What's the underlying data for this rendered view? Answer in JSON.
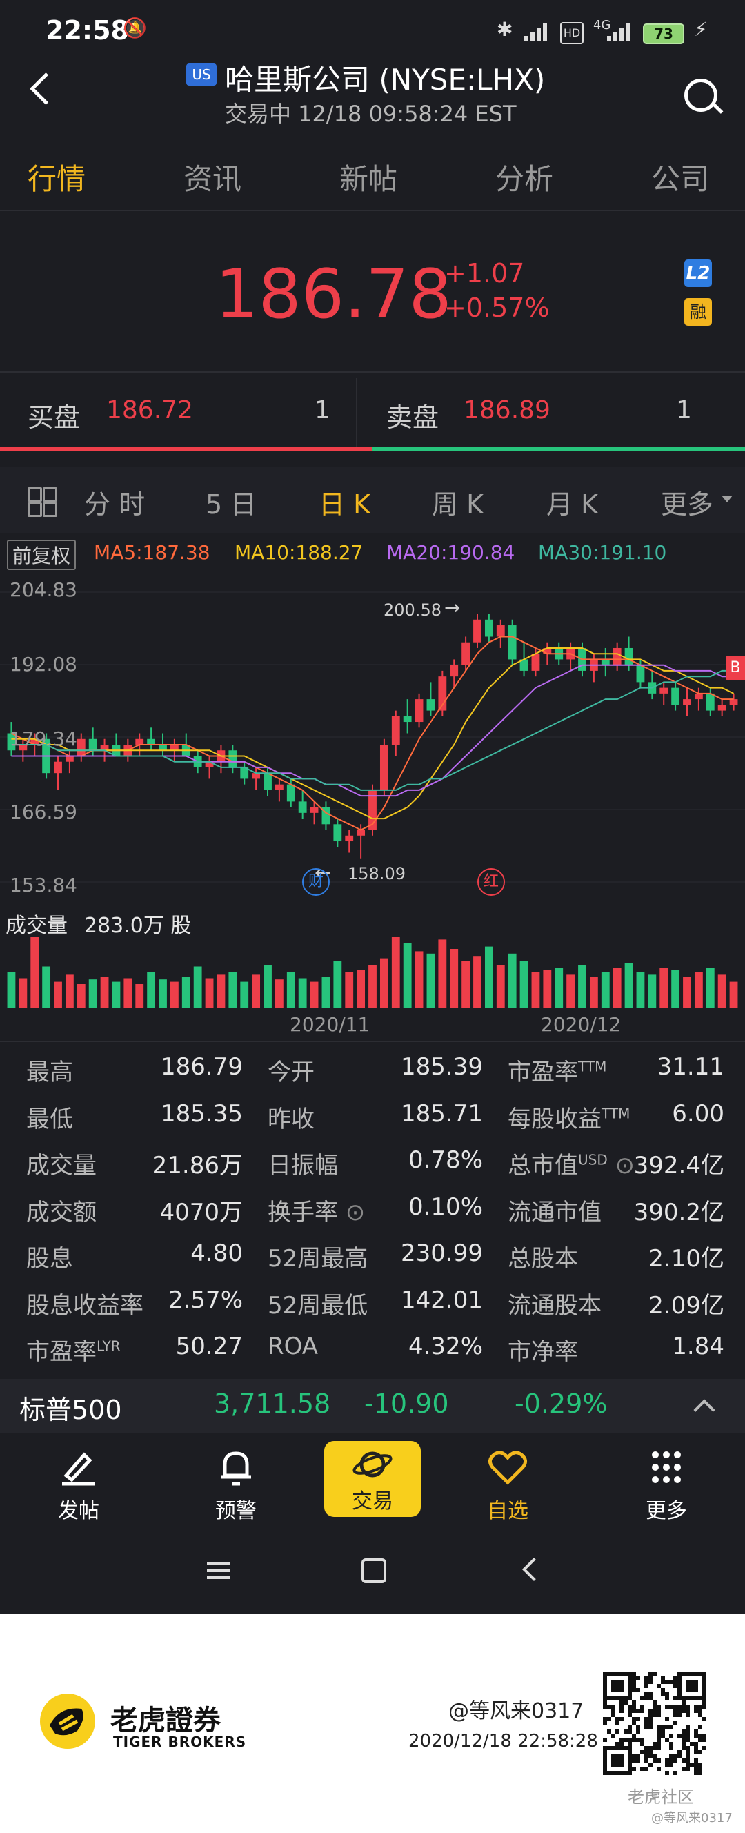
{
  "status_bar": {
    "time": "22:58",
    "battery": "73",
    "network": "4G"
  },
  "header": {
    "market_badge": "US",
    "title": "哈里斯公司 (NYSE:LHX)",
    "subtitle": "交易中 12/18 09:58:24 EST"
  },
  "tabs": [
    "行情",
    "资讯",
    "新帖",
    "分析",
    "公司"
  ],
  "quote": {
    "price": "186.78",
    "change": "+1.07",
    "change_pct": "+0.57%",
    "l2_badge": "L2",
    "margin_badge": "融"
  },
  "order_book": {
    "bid_label": "买盘",
    "bid_price": "186.72",
    "bid_qty": "1",
    "ask_label": "卖盘",
    "ask_price": "186.89",
    "ask_qty": "1"
  },
  "periods": [
    "分 时",
    "5 日",
    "日 K",
    "周 K",
    "月 K",
    "更多"
  ],
  "indicators": {
    "adjust": "前复权",
    "ma5": "MA5:187.38",
    "ma10": "MA10:188.27",
    "ma20": "MA20:190.84",
    "ma30": "MA30:191.10"
  },
  "chart_data": {
    "type": "candlestick",
    "y_ticks": [
      "204.83",
      "192.08",
      "179.34",
      "166.59",
      "153.84"
    ],
    "ylim": [
      153.84,
      204.83
    ],
    "high_annotation": "200.58",
    "low_annotation": "158.09",
    "event_badges": [
      "财",
      "红"
    ],
    "volume_label": "成交量",
    "volume_value": "283.0万 股",
    "x_labels": [
      "2020/11",
      "2020/12"
    ],
    "ohlc": [
      [
        180,
        182,
        176,
        177
      ],
      [
        177,
        179,
        175,
        178
      ],
      [
        178,
        180,
        176,
        179
      ],
      [
        179,
        180,
        172,
        173
      ],
      [
        173,
        176,
        170,
        175
      ],
      [
        175,
        177,
        173,
        176
      ],
      [
        176,
        180,
        175,
        179
      ],
      [
        179,
        181,
        176,
        177
      ],
      [
        177,
        179,
        175,
        178
      ],
      [
        178,
        180,
        176,
        176
      ],
      [
        176,
        179,
        175,
        178
      ],
      [
        178,
        180,
        176,
        179
      ],
      [
        179,
        181,
        177,
        178
      ],
      [
        178,
        180,
        176,
        177
      ],
      [
        177,
        179,
        175,
        178
      ],
      [
        178,
        180,
        176,
        176
      ],
      [
        176,
        177,
        173,
        174
      ],
      [
        174,
        176,
        172,
        175
      ],
      [
        175,
        178,
        173,
        177
      ],
      [
        177,
        178,
        173,
        174
      ],
      [
        174,
        175,
        171,
        172
      ],
      [
        172,
        174,
        170,
        173
      ],
      [
        173,
        174,
        169,
        170
      ],
      [
        170,
        172,
        168,
        171
      ],
      [
        171,
        172,
        167,
        168
      ],
      [
        168,
        170,
        165,
        166
      ],
      [
        166,
        168,
        164,
        167
      ],
      [
        167,
        168,
        163,
        164
      ],
      [
        164,
        165,
        160,
        161
      ],
      [
        161,
        163,
        159,
        162
      ],
      [
        162,
        164,
        158,
        163
      ],
      [
        163,
        171,
        162,
        170
      ],
      [
        170,
        179,
        169,
        178
      ],
      [
        178,
        184,
        176,
        183
      ],
      [
        183,
        186,
        180,
        182
      ],
      [
        182,
        187,
        181,
        186
      ],
      [
        186,
        189,
        183,
        184
      ],
      [
        184,
        191,
        183,
        190
      ],
      [
        190,
        193,
        188,
        192
      ],
      [
        192,
        197,
        191,
        196
      ],
      [
        196,
        201,
        195,
        200
      ],
      [
        200,
        201,
        196,
        197
      ],
      [
        197,
        200,
        195,
        199
      ],
      [
        199,
        200,
        192,
        193
      ],
      [
        193,
        196,
        190,
        191
      ],
      [
        191,
        195,
        190,
        194
      ],
      [
        194,
        196,
        192,
        195
      ],
      [
        195,
        196,
        192,
        193
      ],
      [
        193,
        196,
        191,
        195
      ],
      [
        195,
        196,
        190,
        191
      ],
      [
        191,
        194,
        189,
        193
      ],
      [
        193,
        195,
        190,
        192
      ],
      [
        192,
        196,
        191,
        195
      ],
      [
        195,
        197,
        191,
        192
      ],
      [
        192,
        193,
        188,
        189
      ],
      [
        189,
        191,
        186,
        187
      ],
      [
        187,
        189,
        185,
        188
      ],
      [
        188,
        189,
        184,
        185
      ],
      [
        185,
        188,
        183,
        186
      ],
      [
        186,
        188,
        184,
        187
      ],
      [
        187,
        188,
        183,
        184
      ],
      [
        184,
        186,
        183,
        185
      ],
      [
        185,
        187,
        184,
        186
      ]
    ],
    "volume": [
      30,
      25,
      60,
      35,
      22,
      28,
      20,
      24,
      26,
      22,
      25,
      20,
      30,
      24,
      22,
      26,
      35,
      25,
      28,
      30,
      22,
      28,
      36,
      24,
      30,
      25,
      22,
      26,
      40,
      30,
      32,
      36,
      42,
      60,
      55,
      48,
      46,
      58,
      50,
      40,
      44,
      52,
      36,
      46,
      40,
      30,
      32,
      34,
      28,
      36,
      26,
      30,
      34,
      38,
      30,
      28,
      34,
      32,
      26,
      30,
      34,
      28,
      22
    ],
    "ma5": [
      180,
      179,
      178,
      178,
      177,
      176,
      176,
      177,
      177,
      177,
      177,
      178,
      178,
      178,
      178,
      178,
      177,
      176,
      176,
      175,
      175,
      174,
      173,
      172,
      171,
      170,
      168,
      166,
      165,
      164,
      163,
      164,
      167,
      171,
      175,
      179,
      182,
      185,
      188,
      191,
      194,
      196,
      197,
      197,
      196,
      195,
      194,
      194,
      194,
      193,
      193,
      193,
      193,
      193,
      192,
      191,
      190,
      189,
      188,
      187,
      187,
      186,
      186
    ],
    "ma10": [
      179,
      179,
      179,
      178,
      178,
      177,
      177,
      177,
      177,
      177,
      177,
      177,
      177,
      177,
      177,
      177,
      177,
      177,
      176,
      176,
      176,
      175,
      174,
      173,
      172,
      171,
      170,
      169,
      168,
      167,
      166,
      165,
      165,
      166,
      167,
      169,
      172,
      175,
      178,
      182,
      185,
      188,
      190,
      192,
      193,
      194,
      195,
      195,
      195,
      195,
      194,
      194,
      194,
      193,
      193,
      192,
      191,
      191,
      190,
      189,
      188,
      188,
      187
    ],
    "ma20": [
      176,
      176,
      176,
      176,
      176,
      176,
      176,
      176,
      176,
      176,
      176,
      176,
      176,
      176,
      176,
      176,
      175,
      175,
      175,
      175,
      175,
      174,
      174,
      173,
      173,
      172,
      172,
      171,
      171,
      170,
      169,
      169,
      169,
      169,
      170,
      170,
      171,
      172,
      174,
      176,
      178,
      180,
      182,
      184,
      186,
      188,
      189,
      190,
      191,
      192,
      192,
      192,
      192,
      192,
      192,
      192,
      192,
      191,
      191,
      191,
      191,
      190,
      190
    ],
    "ma30": [
      178,
      178,
      178,
      178,
      177,
      177,
      177,
      177,
      177,
      176,
      176,
      176,
      176,
      176,
      175,
      175,
      175,
      175,
      174,
      174,
      174,
      173,
      173,
      173,
      172,
      172,
      172,
      171,
      171,
      171,
      170,
      170,
      170,
      170,
      171,
      171,
      172,
      172,
      173,
      174,
      175,
      176,
      177,
      178,
      179,
      180,
      181,
      182,
      183,
      184,
      185,
      186,
      186,
      187,
      188,
      188,
      189,
      189,
      190,
      190,
      190,
      191,
      191
    ]
  },
  "stats": [
    [
      [
        "最高",
        "186.79"
      ],
      [
        "今开",
        "185.39"
      ],
      [
        "市盈率",
        "TTM",
        "31.11"
      ]
    ],
    [
      [
        "最低",
        "185.35"
      ],
      [
        "昨收",
        "185.71"
      ],
      [
        "每股收益",
        "TTM",
        "6.00"
      ]
    ],
    [
      [
        "成交量",
        "21.86万"
      ],
      [
        "日振幅",
        "0.78%"
      ],
      [
        "总市值",
        "USD",
        "392.4亿"
      ]
    ],
    [
      [
        "成交额",
        "4070万"
      ],
      [
        "换手率",
        "0.10%"
      ],
      [
        "流通市值",
        "",
        "390.2亿"
      ]
    ],
    [
      [
        "股息",
        "4.80"
      ],
      [
        "52周最高",
        "230.99"
      ],
      [
        "总股本",
        "",
        "2.10亿"
      ]
    ],
    [
      [
        "股息收益率",
        "2.57%"
      ],
      [
        "52周最低",
        "142.01"
      ],
      [
        "流通股本",
        "",
        "2.09亿"
      ]
    ],
    [
      [
        "市盈率",
        "LYR",
        "50.27"
      ],
      [
        "ROA",
        "4.32%"
      ],
      [
        "市净率",
        "",
        "1.84"
      ]
    ]
  ],
  "index_ticker": {
    "name": "标普500",
    "value": "3,711.58",
    "change": "-10.90",
    "change_pct": "-0.29%"
  },
  "bottom_nav": {
    "post": "发帖",
    "alert": "预警",
    "trade": "交易",
    "watchlist": "自选",
    "more": "更多"
  },
  "footer": {
    "brand_cn": "老虎證券",
    "brand_en": "TIGER BROKERS",
    "user": "@等风来0317",
    "timestamp": "2020/12/18 22:58:28",
    "watermark": "老虎社区",
    "watermark_user": "@等风来0317"
  },
  "colors": {
    "up": "#ee3f4a",
    "down": "#27c47c",
    "accent": "#f2b71f",
    "ma5": "#ff6a3d",
    "ma10": "#f2c61f",
    "ma20": "#b86af0",
    "ma30": "#3fb8a0"
  }
}
